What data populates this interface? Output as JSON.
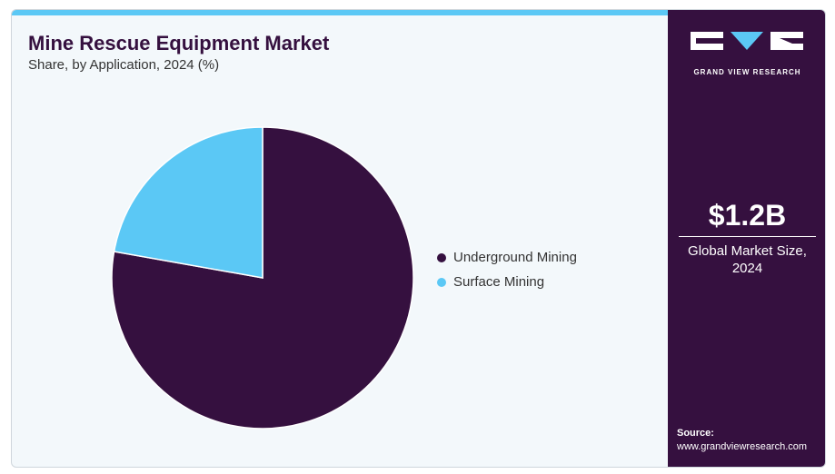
{
  "header": {
    "title": "Mine Rescue Equipment Market",
    "subtitle": "Share, by Application, 2024 (%)"
  },
  "colors": {
    "underground": "#35103f",
    "surface": "#5bc8f5",
    "accent_bar": "#5bc8f5"
  },
  "chart_data": {
    "type": "pie",
    "title": "Mine Rescue Equipment Market",
    "subtitle": "Share, by Application, 2024 (%)",
    "categories": [
      "Underground Mining",
      "Surface Mining"
    ],
    "values": [
      77.8,
      22.2
    ],
    "legend": "right"
  },
  "sidebar": {
    "brand": "GRAND VIEW RESEARCH",
    "market_size_value": "$1.2B",
    "market_size_label": "Global Market Size, 2024",
    "source_label": "Source:",
    "source_url": "www.grandviewresearch.com"
  }
}
